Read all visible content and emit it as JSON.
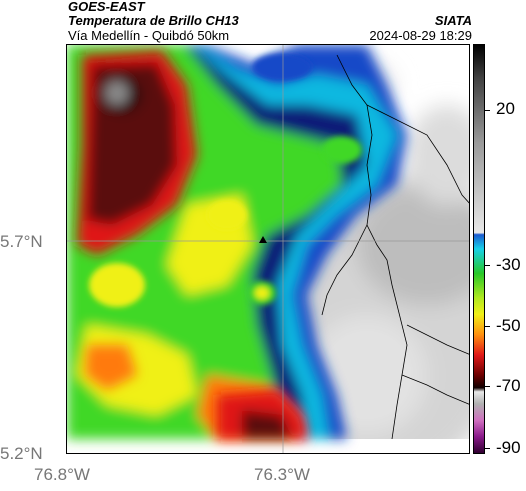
{
  "header": {
    "satellite": "GOES-EAST",
    "product": "Temperatura de Brillo CH13",
    "route": "Vía Medellín - Quibdó 50km",
    "organization": "SIATA",
    "datetime": "2024-08-29 18:29"
  },
  "axes": {
    "y_ticks": [
      "5.7°N",
      "5.2°N"
    ],
    "x_ticks": [
      "76.8°W",
      "76.3°W"
    ]
  },
  "colorbar": {
    "labels": [
      "20",
      "-30",
      "-50",
      "-70",
      "-90"
    ]
  },
  "colors": {
    "dark_red": "#5a0808",
    "red": "#e01818",
    "orange": "#ff7a10",
    "yellow": "#f0f018",
    "green": "#40d828",
    "cyan": "#10b8e0",
    "blue": "#1848c8",
    "navy": "#0a1a78",
    "cloud_gray": "#c8c8c8"
  }
}
